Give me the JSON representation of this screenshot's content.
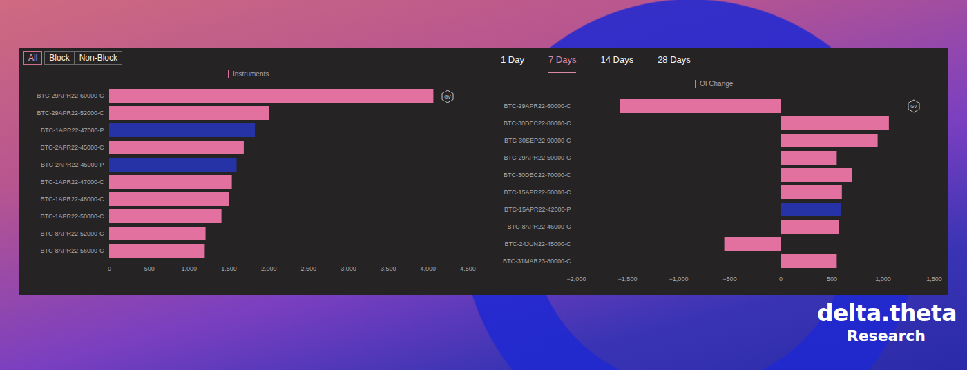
{
  "filters": [
    "All",
    "Block",
    "Non-Block"
  ],
  "active_filter": "All",
  "periods": [
    "1 Day",
    "7 Days",
    "14 Days",
    "28 Days"
  ],
  "active_period": "7 Days",
  "badge": "GV",
  "brand": {
    "name": "delta.theta",
    "subtitle": "Research"
  },
  "chart_data": [
    {
      "type": "bar",
      "orientation": "horizontal",
      "title": "Instruments",
      "categories": [
        "BTC-29APR22-60000-C",
        "BTC-29APR22-52000-C",
        "BTC-1APR22-47000-P",
        "BTC-2APR22-45000-C",
        "BTC-2APR22-45000-P",
        "BTC-1APR22-47000-C",
        "BTC-1APR22-48000-C",
        "BTC-1APR22-50000-C",
        "BTC-8APR22-52000-C",
        "BTC-8APR22-56000-C"
      ],
      "values": [
        4070,
        2010,
        1830,
        1690,
        1600,
        1540,
        1500,
        1410,
        1210,
        1200
      ],
      "colors": [
        "#e3719f",
        "#e3719f",
        "#2633a6",
        "#e3719f",
        "#2633a6",
        "#e3719f",
        "#e3719f",
        "#e3719f",
        "#e3719f",
        "#e3719f"
      ],
      "xlim": [
        0,
        4500
      ],
      "xticks": [
        0,
        500,
        1000,
        1500,
        2000,
        2500,
        3000,
        3500,
        4000,
        4500
      ],
      "grid": false
    },
    {
      "type": "bar",
      "orientation": "horizontal",
      "title": "OI Change",
      "categories": [
        "BTC-29APR22-60000-C",
        "BTC-30DEC22-80000-C",
        "BTC-30SEP22-90000-C",
        "BTC-29APR22-50000-C",
        "BTC-30DEC22-70000-C",
        "BTC-15APR22-50000-C",
        "BTC-15APR22-42000-P",
        "BTC-8APR22-46000-C",
        "BTC-24JUN22-45000-C",
        "BTC-31MAR23-80000-C"
      ],
      "values": [
        -1570,
        1060,
        950,
        550,
        700,
        600,
        590,
        570,
        -550,
        550
      ],
      "colors": [
        "#e3719f",
        "#e3719f",
        "#e3719f",
        "#e3719f",
        "#e3719f",
        "#e3719f",
        "#2633a6",
        "#e3719f",
        "#e3719f",
        "#e3719f"
      ],
      "xlim": [
        -2000,
        1500
      ],
      "xticks": [
        -2000,
        -1500,
        -1000,
        -500,
        0,
        500,
        1000,
        1500
      ],
      "grid": false
    }
  ]
}
